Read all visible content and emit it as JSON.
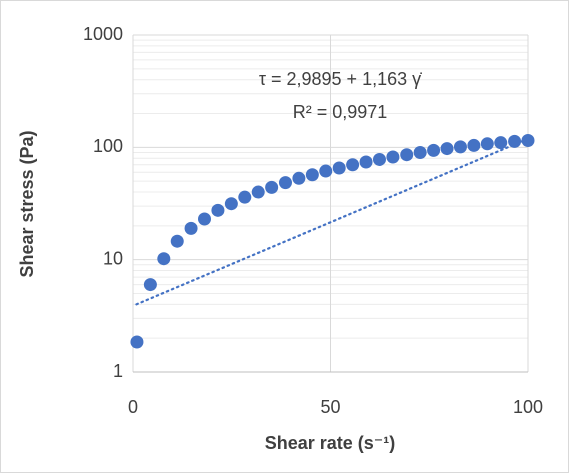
{
  "chart_data": {
    "type": "scatter",
    "log_y": true,
    "grid": true,
    "minor_grid": true,
    "x_label": "Shear rate (s⁻¹)",
    "y_label": "Shear stress (Pa)",
    "annotations": [
      "τ = 2,9895 + 1,163 γ̇",
      "R² = 0,9971"
    ],
    "trendline": {
      "intercept": 2.9895,
      "slope": 1.163,
      "color": "#4472c4"
    },
    "xlim": [
      0,
      100
    ],
    "xticks": [
      0,
      50,
      100
    ],
    "ylim": [
      1,
      1000
    ],
    "yticks": [
      1,
      10,
      100,
      1000
    ],
    "series": [
      {
        "name": "Shear stress",
        "color": "#4472c4",
        "x": [
          1,
          4.4,
          7.8,
          11.2,
          14.7,
          18.1,
          21.5,
          24.9,
          28.3,
          31.7,
          35.1,
          38.6,
          42,
          45.4,
          48.8,
          52.2,
          55.6,
          59,
          62.4,
          65.8,
          69.3,
          72.7,
          76.1,
          79.5,
          82.9,
          86.3,
          89.7,
          93.1,
          96.6,
          100
        ],
        "values": [
          1.85,
          6,
          10.2,
          14.6,
          19,
          23,
          27.5,
          31.5,
          36,
          40,
          44,
          48.5,
          53,
          57,
          61.5,
          65.5,
          70,
          74,
          78,
          82,
          86,
          90,
          94,
          97.5,
          101,
          104,
          107.5,
          110,
          113,
          115
        ]
      }
    ]
  }
}
